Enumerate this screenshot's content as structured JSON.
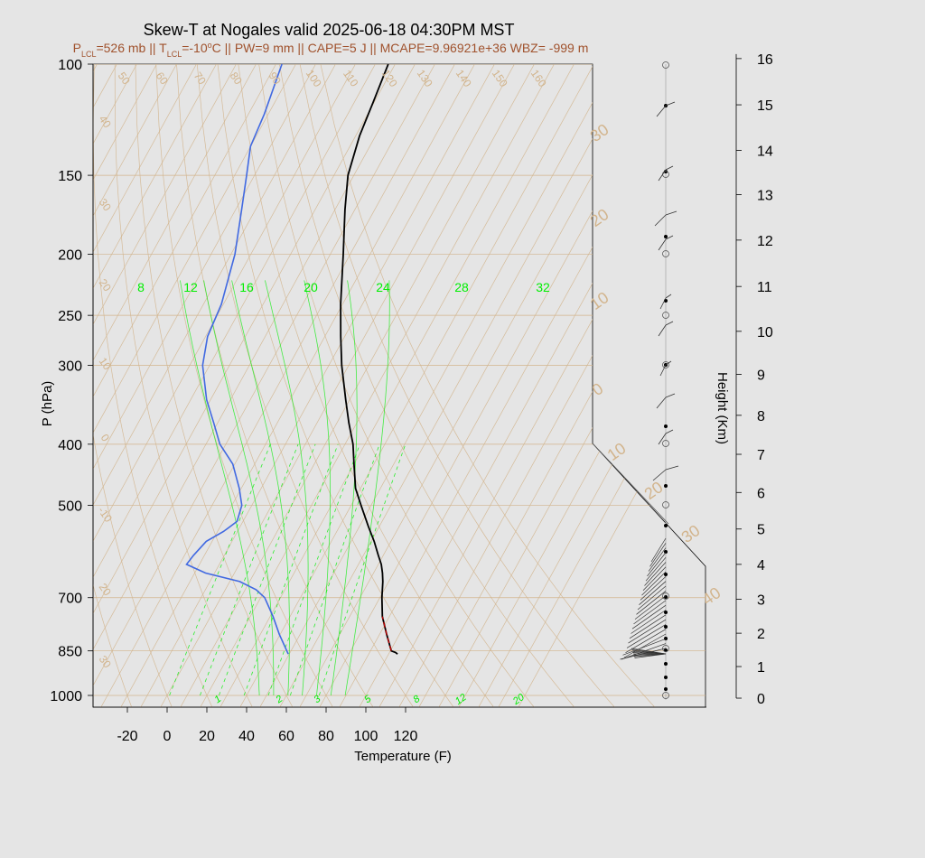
{
  "title": "Skew-T at Nogales valid 2025-06-18 04:30PM MST",
  "subtitle": "P_LCL=526 mb || T_LCL=-10°C || PW=9 mm || CAPE=5 J || MCAPE=9.96921e+36 WBZ= -999 m",
  "subtitle_parts": {
    "p": "P",
    "p_sub": "LCL",
    "p_val": "=526 mb || ",
    "t": "T",
    "t_sub": "LCL",
    "t_val": "=-10",
    "deg": "o",
    "rest": "C || PW=9 mm || CAPE=5 J || MCAPE=9.96921e+36 WBZ= -999 m"
  },
  "colors": {
    "background": "#e5e5e5",
    "temperature": "#000000",
    "dewpoint": "#4169e1",
    "isotherm": "#d2b48c",
    "mixing_ratio": "#00ee00",
    "parcel": "#cc0000"
  },
  "chart_data": {
    "type": "skew-t",
    "xlabel": "Temperature (F)",
    "ylabel": "P (hPa)",
    "y2label": "Height (Km)",
    "xlim_F": [
      -28,
      125
    ],
    "ylim_hPa": [
      1000,
      100
    ],
    "log_pressure_axis": true,
    "x_ticks": [
      "-20",
      "0",
      "20",
      "40",
      "60",
      "80",
      "100",
      "120"
    ],
    "x_tick_values": [
      -20,
      0,
      20,
      40,
      60,
      80,
      100,
      120
    ],
    "p_ticks": [
      "100",
      "150",
      "200",
      "250",
      "300",
      "400",
      "500",
      "700",
      "850",
      "1000"
    ],
    "p_tick_values": [
      100,
      150,
      200,
      250,
      300,
      400,
      500,
      700,
      850,
      1000
    ],
    "height_ticks": [
      "0",
      "1",
      "2",
      "3",
      "4",
      "5",
      "6",
      "7",
      "8",
      "9",
      "10",
      "11",
      "12",
      "13",
      "14",
      "15",
      "16"
    ],
    "height_tick_values": [
      0,
      1,
      2,
      3,
      4,
      5,
      6,
      7,
      8,
      9,
      10,
      11,
      12,
      13,
      14,
      15,
      16
    ],
    "height_tick_pressures": [
      1010,
      900,
      797,
      704,
      620,
      545,
      477,
      415,
      360,
      310,
      265,
      225,
      190,
      161,
      137,
      116,
      98
    ],
    "isotherm_labels_top": [
      "50",
      "60",
      "70",
      "80",
      "90",
      "100",
      "110",
      "120",
      "130",
      "140",
      "150",
      "160"
    ],
    "isotherm_labels_left": [
      "40",
      "30",
      "20",
      "10",
      "0",
      "-10",
      "20",
      "30"
    ],
    "isotherm_labels_right": [
      "30",
      "20",
      "10",
      "0",
      "10",
      "20",
      "30",
      "40"
    ],
    "mixing_ratio_labels_top": [
      "8",
      "12",
      "16",
      "20",
      "24",
      "28",
      "32"
    ],
    "mixing_ratio_labels_bottom": [
      "1",
      "2",
      "3",
      "5",
      "8",
      "12",
      "20"
    ],
    "temperature_profile": [
      {
        "p": 860,
        "t": 104.5
      },
      {
        "p": 855,
        "t": 103.0
      },
      {
        "p": 850,
        "t": 100.5
      },
      {
        "p": 800,
        "t": 93.5
      },
      {
        "p": 750,
        "t": 86.5
      },
      {
        "p": 700,
        "t": 81.0
      },
      {
        "p": 660,
        "t": 77.0
      },
      {
        "p": 640,
        "t": 74.5
      },
      {
        "p": 620,
        "t": 71.5
      },
      {
        "p": 600,
        "t": 67.5
      },
      {
        "p": 570,
        "t": 61.5
      },
      {
        "p": 540,
        "t": 54.5
      },
      {
        "p": 500,
        "t": 45.0
      },
      {
        "p": 470,
        "t": 37.5
      },
      {
        "p": 430,
        "t": 30.0
      },
      {
        "p": 400,
        "t": 24.0
      },
      {
        "p": 370,
        "t": 16.0
      },
      {
        "p": 340,
        "t": 8.0
      },
      {
        "p": 300,
        "t": -3.5
      },
      {
        "p": 270,
        "t": -12.0
      },
      {
        "p": 240,
        "t": -21.0
      },
      {
        "p": 200,
        "t": -33.5
      },
      {
        "p": 170,
        "t": -45.0
      },
      {
        "p": 150,
        "t": -53.0
      },
      {
        "p": 130,
        "t": -58.0
      },
      {
        "p": 115,
        "t": -60.5
      },
      {
        "p": 100,
        "t": -63.5
      }
    ],
    "dewpoint_profile": [
      {
        "p": 860,
        "td": 49.5
      },
      {
        "p": 800,
        "td": 39.5
      },
      {
        "p": 750,
        "td": 31.5
      },
      {
        "p": 700,
        "td": 22.0
      },
      {
        "p": 680,
        "td": 15.5
      },
      {
        "p": 660,
        "td": 5.0
      },
      {
        "p": 640,
        "td": -14.5
      },
      {
        "p": 620,
        "td": -26.5
      },
      {
        "p": 600,
        "td": -25.5
      },
      {
        "p": 570,
        "td": -23.0
      },
      {
        "p": 550,
        "td": -17.0
      },
      {
        "p": 530,
        "td": -13.0
      },
      {
        "p": 500,
        "td": -15.0
      },
      {
        "p": 470,
        "td": -21.0
      },
      {
        "p": 430,
        "td": -31.0
      },
      {
        "p": 400,
        "td": -43.0
      },
      {
        "p": 370,
        "td": -52.0
      },
      {
        "p": 340,
        "td": -62.0
      },
      {
        "p": 300,
        "td": -73.5
      },
      {
        "p": 270,
        "td": -79.0
      },
      {
        "p": 240,
        "td": -81.0
      },
      {
        "p": 200,
        "td": -88.0
      },
      {
        "p": 170,
        "td": -97.0
      },
      {
        "p": 150,
        "td": -104.0
      },
      {
        "p": 135,
        "td": -110.0
      },
      {
        "p": 120,
        "td": -112.0
      },
      {
        "p": 100,
        "td": -117.0
      }
    ],
    "parcel_segment": [
      {
        "p": 850,
        "t": 100.5
      },
      {
        "p": 800,
        "t": 93.5
      },
      {
        "p": 750,
        "t": 86.5
      }
    ]
  }
}
